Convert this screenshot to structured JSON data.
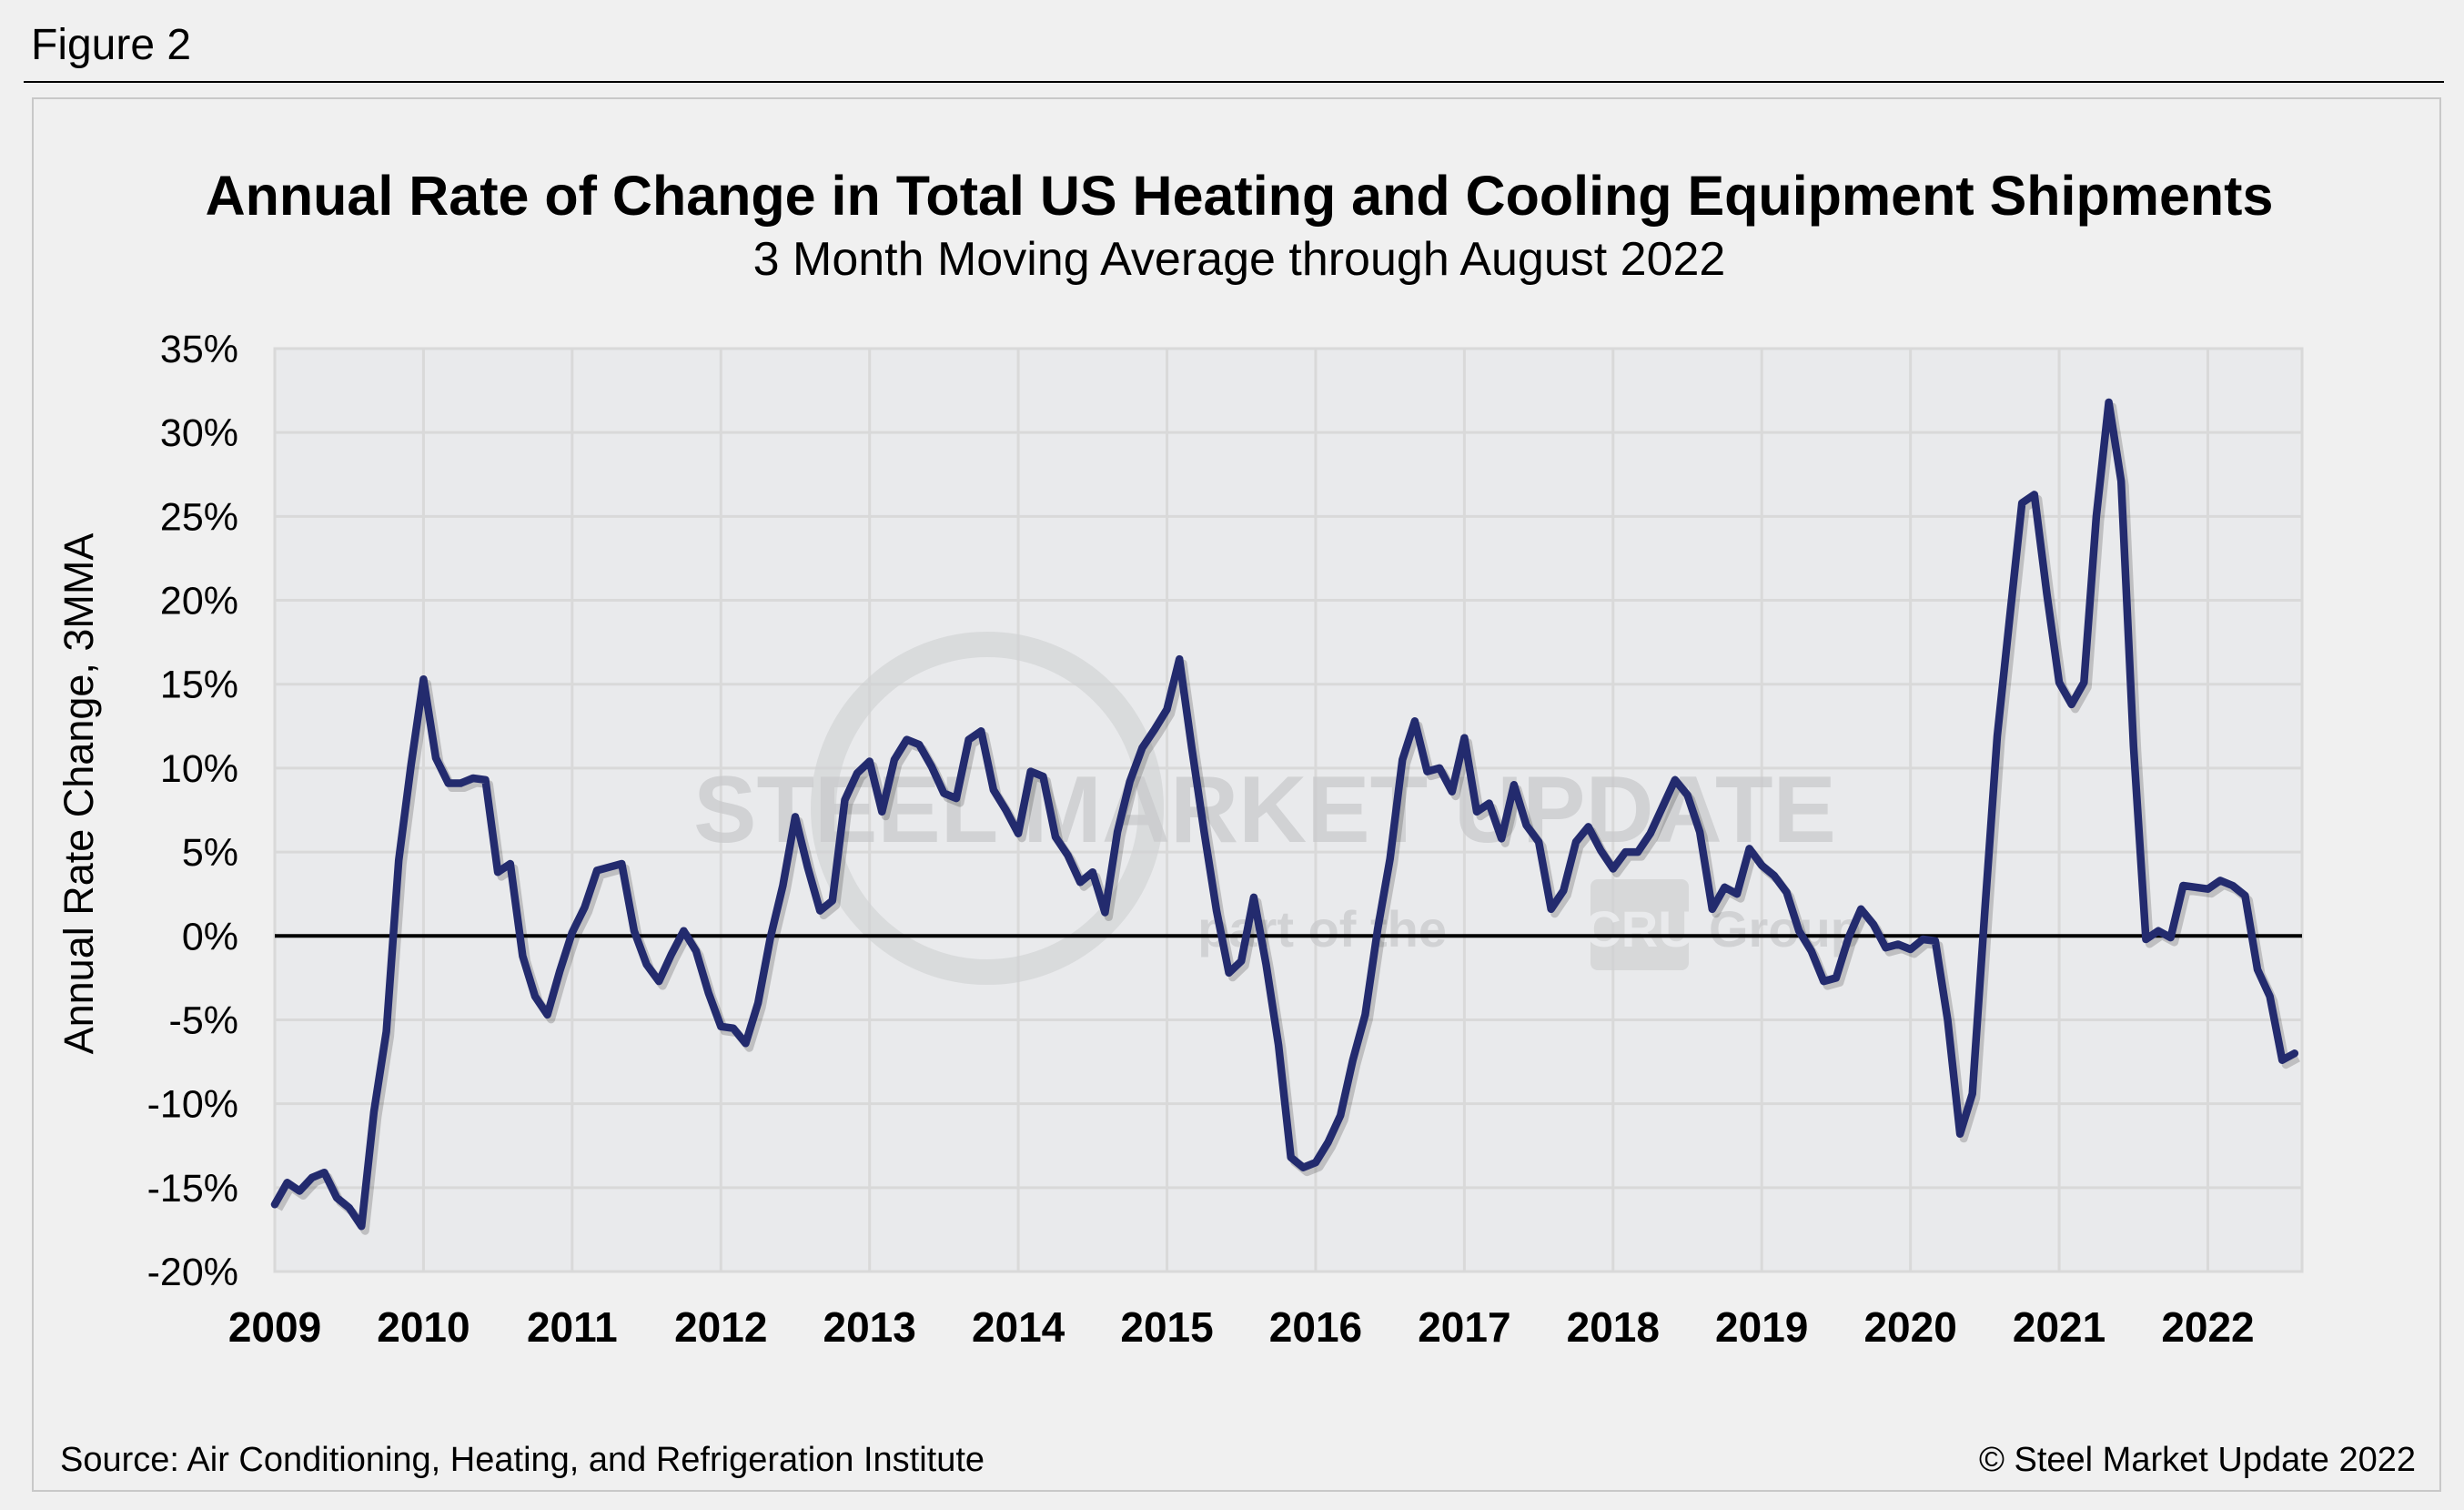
{
  "figure_label": "Figure 2",
  "source": "Source: Air Conditioning, Heating, and Refrigeration Institute",
  "copyright": "© Steel Market Update 2022",
  "watermark": {
    "line1": "STEEL MARKET UPDATE",
    "line2a": "part of the",
    "line2b": "CRU",
    "line2c": "Group"
  },
  "colors": {
    "line": "#232b6e",
    "plot_bg": "#e9eaec",
    "grid": "#d9d9d9",
    "zero_line": "#000000"
  },
  "chart_data": {
    "type": "line",
    "title": "Annual Rate of Change in Total US Heating and Cooling Equipment Shipments",
    "subtitle": "3 Month Moving Average through August 2022",
    "ylabel": "Annual Rate Change, 3MMA",
    "xlabel": "",
    "ylim": [
      -20,
      35
    ],
    "yticks": [
      35,
      30,
      25,
      20,
      15,
      10,
      5,
      0,
      -5,
      -10,
      -15,
      -20
    ],
    "ytick_labels": [
      "35%",
      "30%",
      "25%",
      "20%",
      "15%",
      "10%",
      "5%",
      "0%",
      "-5%",
      "-10%",
      "-15%",
      "-20%"
    ],
    "xtick_labels": [
      "2009",
      "2010",
      "2011",
      "2012",
      "2013",
      "2014",
      "2015",
      "2016",
      "2017",
      "2018",
      "2019",
      "2020",
      "2021",
      "2022"
    ],
    "x_start": "2009-01",
    "x_end": "2022-08",
    "frequency": "monthly",
    "grid": true,
    "legend": "none",
    "series": [
      {
        "values": [
          -16.0,
          -14.7,
          -15.2,
          -14.4,
          -14.1,
          -15.6,
          -16.2,
          -17.3,
          -10.5,
          -5.7,
          4.5,
          10.2,
          15.3,
          10.6,
          9.1,
          9.1,
          9.4,
          9.3,
          3.8,
          4.3,
          -1.2,
          -3.6,
          -4.7,
          -2.1,
          0.2,
          1.7,
          3.9,
          4.1,
          4.3,
          0.3,
          -1.7,
          -2.7,
          -1.1,
          0.3,
          -0.9,
          -3.4,
          -5.4,
          -5.5,
          -6.4,
          -4.0,
          -0.1,
          3.0,
          7.1,
          4.1,
          1.5,
          2.1,
          8.1,
          9.7,
          10.4,
          7.4,
          10.5,
          11.7,
          11.4,
          10.1,
          8.5,
          8.2,
          11.7,
          12.2,
          8.7,
          7.5,
          6.1,
          9.8,
          9.5,
          5.9,
          4.8,
          3.2,
          3.8,
          1.4,
          6.2,
          9.2,
          11.2,
          12.3,
          13.5,
          16.5,
          11.2,
          6.2,
          1.5,
          -2.2,
          -1.5,
          2.3,
          -1.7,
          -6.5,
          -13.2,
          -13.8,
          -13.5,
          -12.3,
          -10.7,
          -7.4,
          -4.7,
          0.4,
          4.6,
          10.5,
          12.8,
          9.8,
          10.0,
          8.6,
          11.8,
          7.4,
          7.9,
          5.8,
          9.0,
          6.6,
          5.6,
          1.6,
          2.7,
          5.6,
          6.5,
          5.1,
          4.0,
          5.0,
          5.0,
          6.1,
          7.7,
          9.3,
          8.4,
          6.2,
          1.6,
          2.9,
          2.5,
          5.2,
          4.2,
          3.6,
          2.6,
          0.3,
          -0.9,
          -2.7,
          -2.5,
          -0.1,
          1.6,
          0.7,
          -0.7,
          -0.5,
          -0.8,
          -0.2,
          -0.3,
          -5.0,
          -11.8,
          -9.4,
          1.5,
          11.9,
          18.9,
          25.8,
          26.3,
          20.4,
          15.1,
          13.8,
          15.1,
          25.0,
          31.8,
          27.1,
          11.3,
          -0.2,
          0.3,
          -0.1,
          3.0,
          2.9,
          2.8,
          3.3,
          3.0,
          2.4,
          -2.0,
          -3.6,
          -7.4,
          -7.0
        ]
      }
    ]
  }
}
